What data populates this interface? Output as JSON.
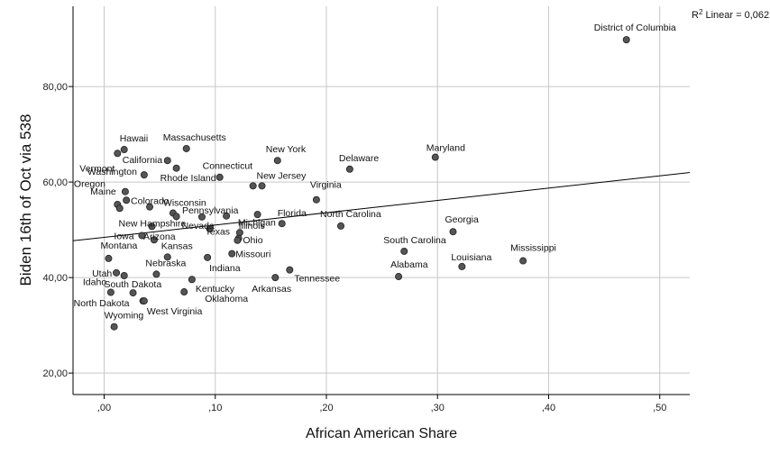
{
  "chart_data": {
    "type": "scatter",
    "xlabel": "African American Share",
    "ylabel": "Biden 16th of Oct via 538",
    "xlim": [
      -0.028,
      0.527
    ],
    "ylim": [
      15.5,
      96.8
    ],
    "x_ticks": [
      0,
      0.1,
      0.2,
      0.3,
      0.4,
      0.5
    ],
    "x_tick_labels": [
      ",00",
      ",10",
      ",20",
      ",30",
      ",40",
      ",50"
    ],
    "y_ticks": [
      20,
      40,
      60,
      80
    ],
    "y_tick_labels": [
      "20,00",
      "40,00",
      "60,00",
      "80,00"
    ],
    "grid": true,
    "fit_line": {
      "label": "R² Linear = 0,062",
      "x": [
        -0.028,
        0.527
      ],
      "y": [
        47.7,
        62.0
      ]
    },
    "colors": {
      "point_fill": "#555555",
      "grid": "#c8c8c8",
      "axis": "#000000",
      "fit": "#000000"
    },
    "points": [
      {
        "name": "District of Columbia",
        "x": 0.47,
        "y": 89.8
      },
      {
        "name": "Maryland",
        "x": 0.298,
        "y": 65.2
      },
      {
        "name": "Delaware",
        "x": 0.221,
        "y": 62.7
      },
      {
        "name": "Massachusetts",
        "x": 0.074,
        "y": 67.0
      },
      {
        "name": "Hawaii",
        "x": 0.018,
        "y": 66.8
      },
      {
        "name": "Vermont",
        "x": 0.012,
        "y": 66.0
      },
      {
        "name": "California",
        "x": 0.057,
        "y": 64.5
      },
      {
        "name": "",
        "x": 0.065,
        "y": 62.9
      },
      {
        "name": "New York",
        "x": 0.156,
        "y": 64.5
      },
      {
        "name": "Washington",
        "x": 0.036,
        "y": 61.5
      },
      {
        "name": "Rhode Island",
        "x": 0.104,
        "y": 61.0
      },
      {
        "name": "Connecticut",
        "x": 0.134,
        "y": 59.2
      },
      {
        "name": "New Jersey",
        "x": 0.142,
        "y": 59.2
      },
      {
        "name": "Oregon",
        "x": 0.019,
        "y": 58.0
      },
      {
        "name": "Maine",
        "x": 0.02,
        "y": 56.2
      },
      {
        "name": "",
        "x": 0.012,
        "y": 55.3
      },
      {
        "name": "",
        "x": 0.014,
        "y": 54.5
      },
      {
        "name": "Colorado",
        "x": 0.041,
        "y": 54.8
      },
      {
        "name": "Illinois",
        "x": 0.138,
        "y": 53.2
      },
      {
        "name": "Virginia",
        "x": 0.191,
        "y": 56.3
      },
      {
        "name": "Wisconsin",
        "x": 0.062,
        "y": 53.5
      },
      {
        "name": "",
        "x": 0.065,
        "y": 52.8
      },
      {
        "name": "Pennsylvania",
        "x": 0.088,
        "y": 52.7
      },
      {
        "name": "",
        "x": 0.11,
        "y": 52.9
      },
      {
        "name": "Florida",
        "x": 0.16,
        "y": 51.3
      },
      {
        "name": "North Carolina",
        "x": 0.213,
        "y": 50.8
      },
      {
        "name": "New Hampshire",
        "x": 0.043,
        "y": 50.7
      },
      {
        "name": "Nevada",
        "x": 0.095,
        "y": 50.2
      },
      {
        "name": "Michigan",
        "x": 0.122,
        "y": 49.4
      },
      {
        "name": "Iowa",
        "x": 0.034,
        "y": 48.8
      },
      {
        "name": "Texas",
        "x": 0.121,
        "y": 48.2
      },
      {
        "name": "Georgia",
        "x": 0.314,
        "y": 49.6
      },
      {
        "name": "Arizona",
        "x": 0.045,
        "y": 47.9
      },
      {
        "name": "Ohio",
        "x": 0.12,
        "y": 47.8
      },
      {
        "name": "South Carolina",
        "x": 0.27,
        "y": 45.5
      },
      {
        "name": "Montana",
        "x": 0.004,
        "y": 44.0
      },
      {
        "name": "Kansas",
        "x": 0.057,
        "y": 44.3
      },
      {
        "name": "Missouri",
        "x": 0.115,
        "y": 45.0
      },
      {
        "name": "Mississippi",
        "x": 0.377,
        "y": 43.5
      },
      {
        "name": "Louisiana",
        "x": 0.322,
        "y": 42.3
      },
      {
        "name": "Indiana",
        "x": 0.093,
        "y": 44.2
      },
      {
        "name": "Nebraska",
        "x": 0.047,
        "y": 40.7
      },
      {
        "name": "Utah",
        "x": 0.011,
        "y": 41.0
      },
      {
        "name": "",
        "x": 0.018,
        "y": 40.4
      },
      {
        "name": "Tennessee",
        "x": 0.167,
        "y": 41.6
      },
      {
        "name": "Alabama",
        "x": 0.265,
        "y": 40.2
      },
      {
        "name": "Arkansas",
        "x": 0.154,
        "y": 40.0
      },
      {
        "name": "Kentucky",
        "x": 0.079,
        "y": 39.6
      },
      {
        "name": "South Dakota",
        "x": 0.026,
        "y": 36.8
      },
      {
        "name": "Idaho",
        "x": 0.006,
        "y": 36.9
      },
      {
        "name": "Oklahoma",
        "x": 0.072,
        "y": 37.0
      },
      {
        "name": "North Dakota",
        "x": 0.035,
        "y": 35.1
      },
      {
        "name": "West Virginia",
        "x": 0.036,
        "y": 35.1
      },
      {
        "name": "Wyoming",
        "x": 0.009,
        "y": 29.7
      }
    ]
  }
}
